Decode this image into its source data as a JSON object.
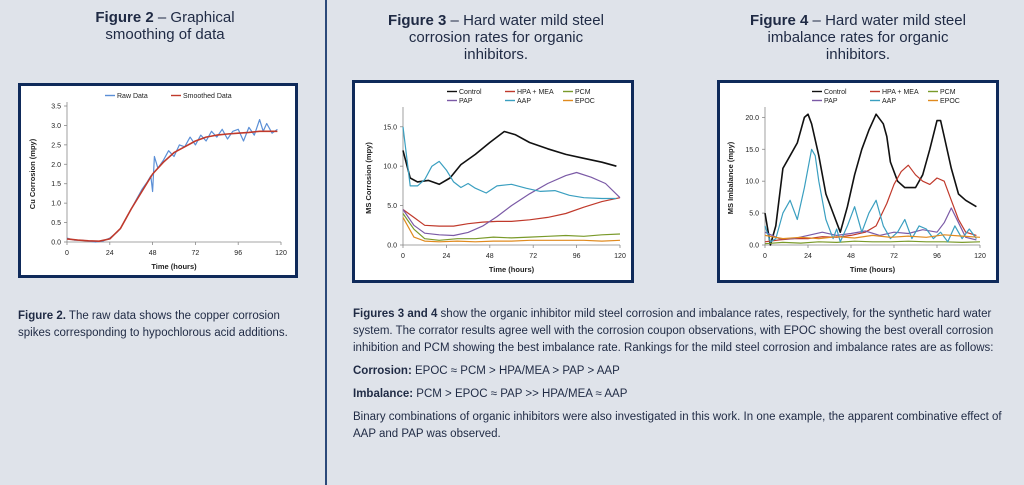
{
  "fig2": {
    "title_bold": "Figure 2",
    "title_rest": " – Graphical smoothing of data",
    "caption_bold": "Figure 2.",
    "caption_rest": " The raw data shows the copper corrosion spikes corresponding to hypochlorous acid additions."
  },
  "fig3": {
    "title_bold": "Figure 3",
    "title_rest": " – Hard water mild steel corrosion rates for organic inhibitors."
  },
  "fig4": {
    "title_bold": "Figure 4",
    "title_rest": " – Hard water mild steel imbalance rates for organic inhibitors."
  },
  "text": {
    "para1_bold": "Figures 3 and 4",
    "para1_rest": " show the organic inhibitor mild steel corrosion and imbalance rates, respectively, for the synthetic hard water system. The corrator results agree well with the corrosion coupon observations, with EPOC showing the best overall corrosion inhibition and PCM showing the best imbalance rate. Rankings for the mild steel corrosion and imbalance rates are as follows:",
    "corrosion_label": "Corrosion:",
    "corrosion_rank": "EPOC ≈ PCM > HPA/MEA > PAP > AAP",
    "imbalance_label": "Imbalance:",
    "imbalance_rank": "PCM > EPOC ≈ PAP >> HPA/MEA ≈ AAP",
    "para2": "Binary combinations of organic inhibitors were also investigated in this work. In one example, the apparent combinative effect of AAP and PAP was observed."
  },
  "colors": {
    "Control": "#111111",
    "HPA + MEA": "#c0392b",
    "PCM": "#7a9a2a",
    "PAP": "#7b5aa6",
    "AAP": "#3a9fc0",
    "EPOC": "#e08a1e",
    "Raw Data": "#5b8fd6",
    "Smoothed Data": "#c0392b"
  },
  "chart_data": [
    {
      "id": "fig2",
      "type": "line",
      "xlabel": "Time (hours)",
      "ylabel": "Cu Corrosion (mpy)",
      "xlim": [
        0,
        120
      ],
      "ylim": [
        0,
        3.5
      ],
      "xticks": [
        "0",
        "24",
        "48",
        "72",
        "96",
        "120"
      ],
      "yticks": [
        "0.0",
        "0.5",
        "1.0",
        "1.5",
        "2.0",
        "2.5",
        "3.0",
        "3.5"
      ],
      "legend": [
        "Raw Data",
        "Smoothed Data"
      ],
      "series": [
        {
          "name": "Raw Data",
          "x": [
            0,
            4,
            8,
            12,
            16,
            20,
            24,
            28,
            30,
            33,
            36,
            39,
            42,
            45,
            47,
            48,
            49,
            51,
            54,
            57,
            60,
            63,
            66,
            69,
            72,
            75,
            78,
            81,
            84,
            87,
            90,
            93,
            96,
            99,
            102,
            105,
            108,
            110,
            112,
            115,
            118
          ],
          "values": [
            0.1,
            0.05,
            0.05,
            0.02,
            0.0,
            0.02,
            0.1,
            0.25,
            0.35,
            0.6,
            0.85,
            1.1,
            1.35,
            1.55,
            1.7,
            1.3,
            2.2,
            1.9,
            2.1,
            2.35,
            2.2,
            2.5,
            2.45,
            2.7,
            2.5,
            2.75,
            2.6,
            2.85,
            2.7,
            2.9,
            2.65,
            2.85,
            2.9,
            2.6,
            2.95,
            2.75,
            3.15,
            2.85,
            3.05,
            2.8,
            2.9
          ]
        },
        {
          "name": "Smoothed Data",
          "x": [
            0,
            6,
            12,
            18,
            24,
            30,
            36,
            42,
            48,
            54,
            60,
            66,
            72,
            78,
            84,
            90,
            96,
            102,
            108,
            114,
            118
          ],
          "values": [
            0.08,
            0.05,
            0.03,
            0.02,
            0.08,
            0.35,
            0.85,
            1.3,
            1.75,
            2.05,
            2.3,
            2.45,
            2.6,
            2.7,
            2.75,
            2.78,
            2.8,
            2.82,
            2.85,
            2.85,
            2.85
          ]
        }
      ]
    },
    {
      "id": "fig3",
      "type": "line",
      "xlabel": "Time (hours)",
      "ylabel": "MS Corrosion (mpy)",
      "xlim": [
        0,
        120
      ],
      "ylim": [
        0,
        17
      ],
      "xticks": [
        "0",
        "24",
        "48",
        "72",
        "96",
        "120"
      ],
      "yticks": [
        "0.0",
        "5.0",
        "10.0",
        "15.0"
      ],
      "legend": [
        "Control",
        "HPA + MEA",
        "PCM",
        "PAP",
        "AAP",
        "EPOC"
      ],
      "series": [
        {
          "name": "Control",
          "x": [
            0,
            4,
            8,
            14,
            20,
            26,
            32,
            40,
            48,
            56,
            62,
            70,
            80,
            90,
            100,
            110,
            118
          ],
          "values": [
            12,
            8.5,
            8,
            8.2,
            7.7,
            8.5,
            10.2,
            11.5,
            13,
            14.4,
            14,
            13,
            12.2,
            11.5,
            11,
            10.5,
            10
          ]
        },
        {
          "name": "HPA + MEA",
          "x": [
            0,
            6,
            12,
            20,
            28,
            36,
            44,
            52,
            60,
            70,
            80,
            90,
            100,
            110,
            120
          ],
          "values": [
            4.5,
            3.5,
            2.5,
            2.4,
            2.4,
            2.7,
            2.9,
            3.0,
            3.0,
            3.2,
            3.5,
            4.0,
            4.8,
            5.5,
            6.0
          ]
        },
        {
          "name": "PCM",
          "x": [
            0,
            6,
            12,
            20,
            30,
            40,
            50,
            60,
            70,
            80,
            90,
            100,
            110,
            120
          ],
          "values": [
            4.0,
            2.0,
            0.8,
            0.6,
            0.8,
            0.8,
            1.0,
            0.9,
            1.0,
            1.1,
            1.2,
            1.1,
            1.3,
            1.4
          ]
        },
        {
          "name": "PAP",
          "x": [
            0,
            6,
            12,
            20,
            28,
            36,
            44,
            52,
            60,
            70,
            80,
            90,
            96,
            104,
            112,
            120
          ],
          "values": [
            4.5,
            2.5,
            1.5,
            1.3,
            1.2,
            1.6,
            2.4,
            3.6,
            5.0,
            6.5,
            7.8,
            8.8,
            9.2,
            8.6,
            7.8,
            6.0
          ]
        },
        {
          "name": "AAP",
          "x": [
            0,
            4,
            8,
            12,
            16,
            20,
            24,
            28,
            32,
            36,
            40,
            46,
            52,
            60,
            68,
            76,
            84,
            92,
            100,
            110,
            118
          ],
          "values": [
            15,
            7.5,
            7.5,
            8.3,
            10.0,
            10.6,
            9.5,
            8.0,
            7.3,
            7.8,
            7.2,
            6.6,
            7.5,
            7.7,
            7.2,
            6.8,
            6.9,
            6.3,
            6.0,
            5.9,
            5.9
          ]
        },
        {
          "name": "EPOC",
          "x": [
            0,
            6,
            12,
            20,
            30,
            40,
            50,
            60,
            70,
            80,
            90,
            100,
            110,
            120
          ],
          "values": [
            3.5,
            1.0,
            0.5,
            0.4,
            0.5,
            0.4,
            0.5,
            0.5,
            0.6,
            0.6,
            0.6,
            0.6,
            0.5,
            0.6
          ]
        }
      ]
    },
    {
      "id": "fig4",
      "type": "line",
      "xlabel": "Time (hours)",
      "ylabel": "MS Imbalance (mpy)",
      "xlim": [
        0,
        120
      ],
      "ylim": [
        0,
        21
      ],
      "xticks": [
        "0",
        "24",
        "48",
        "72",
        "96",
        "120"
      ],
      "yticks": [
        "0.0",
        "5.0",
        "10.0",
        "15.0",
        "20.0"
      ],
      "legend": [
        "Control",
        "HPA + MEA",
        "PCM",
        "PAP",
        "AAP",
        "EPOC"
      ],
      "series": [
        {
          "name": "Control",
          "x": [
            0,
            3,
            6,
            10,
            14,
            18,
            22,
            24,
            26,
            30,
            34,
            38,
            42,
            46,
            50,
            54,
            58,
            62,
            66,
            68,
            70,
            74,
            78,
            84,
            88,
            92,
            96,
            98,
            100,
            104,
            108,
            112,
            118
          ],
          "values": [
            5,
            0,
            3,
            12,
            14,
            16,
            20,
            20.5,
            19,
            14,
            8,
            5,
            2,
            6,
            11,
            15,
            18,
            20.5,
            19,
            17,
            13,
            10,
            9,
            9,
            11,
            15,
            19.5,
            19.5,
            17,
            12,
            8,
            7,
            6
          ]
        },
        {
          "name": "HPA + MEA",
          "x": [
            0,
            8,
            16,
            24,
            32,
            40,
            48,
            56,
            62,
            68,
            72,
            76,
            80,
            84,
            88,
            92,
            96,
            100,
            104,
            108,
            112,
            118
          ],
          "values": [
            0.5,
            0.8,
            1.0,
            1.0,
            1.3,
            1.2,
            1.5,
            2.0,
            3.0,
            6.5,
            9.5,
            11.5,
            12.5,
            11,
            10,
            9.5,
            10.5,
            10,
            7,
            4,
            2,
            1.5
          ]
        },
        {
          "name": "PCM",
          "x": [
            0,
            10,
            20,
            30,
            40,
            50,
            60,
            70,
            80,
            90,
            100,
            110,
            120
          ],
          "values": [
            0.2,
            0.4,
            0.3,
            0.5,
            0.4,
            0.6,
            0.5,
            0.5,
            0.6,
            0.5,
            0.5,
            0.4,
            0.5
          ]
        },
        {
          "name": "PAP",
          "x": [
            0,
            8,
            16,
            24,
            32,
            40,
            48,
            56,
            64,
            72,
            80,
            88,
            96,
            100,
            104,
            108,
            112,
            118
          ],
          "values": [
            2,
            1,
            1,
            1.5,
            2,
            1.5,
            1.8,
            2.2,
            1.5,
            2,
            1.8,
            2.4,
            2,
            3.5,
            5.8,
            3.5,
            1.2,
            0.8
          ]
        },
        {
          "name": "AAP",
          "x": [
            0,
            3,
            6,
            10,
            14,
            18,
            22,
            26,
            28,
            30,
            34,
            38,
            40,
            42,
            46,
            50,
            54,
            58,
            62,
            66,
            70,
            74,
            78,
            82,
            86,
            90,
            94,
            98,
            102,
            106,
            110,
            114,
            118
          ],
          "values": [
            3,
            0.5,
            1,
            5,
            7,
            4,
            9,
            15,
            14,
            10,
            4,
            1,
            2.5,
            0.5,
            3,
            6,
            2,
            5,
            7,
            3,
            1,
            2,
            4,
            1,
            3,
            2.5,
            1,
            2,
            0.5,
            3,
            1,
            2.5,
            1
          ]
        },
        {
          "name": "EPOC",
          "x": [
            0,
            10,
            20,
            30,
            40,
            50,
            60,
            70,
            80,
            90,
            100,
            110,
            120
          ],
          "values": [
            1.5,
            1.0,
            1.2,
            1.0,
            1.3,
            1.1,
            1.5,
            1.2,
            1.4,
            1.2,
            1.6,
            1.4,
            1.2
          ]
        }
      ]
    }
  ]
}
